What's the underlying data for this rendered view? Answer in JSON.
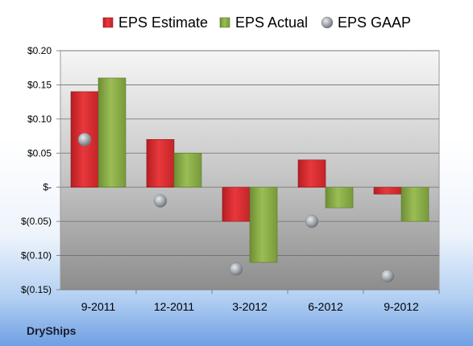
{
  "company": "DryShips",
  "colors": {
    "estimate": "#d42a2e",
    "actual": "#84a843",
    "gaap": "#a9aeb4"
  },
  "chart_data": {
    "type": "bar",
    "categories": [
      "9-2011",
      "12-2011",
      "3-2012",
      "6-2012",
      "9-2012"
    ],
    "series": [
      {
        "name": "EPS Estimate",
        "values": [
          0.14,
          0.07,
          -0.05,
          0.04,
          -0.01
        ]
      },
      {
        "name": "EPS Actual",
        "values": [
          0.16,
          0.05,
          -0.11,
          -0.03,
          -0.05
        ]
      },
      {
        "name": "EPS GAAP",
        "values": [
          0.07,
          -0.02,
          -0.12,
          -0.05,
          -0.13
        ],
        "marker": "circle"
      }
    ],
    "ylim": [
      -0.15,
      0.2
    ],
    "yticks": [
      0.2,
      0.15,
      0.1,
      0.05,
      0,
      -0.05,
      -0.1,
      -0.15
    ],
    "ytick_labels": [
      "$0.20",
      "$0.15",
      "$0.10",
      "$0.05",
      "$-",
      "$(0.05)",
      "$(0.10)",
      "$(0.15)"
    ],
    "legend_position": "top",
    "grid": true
  }
}
